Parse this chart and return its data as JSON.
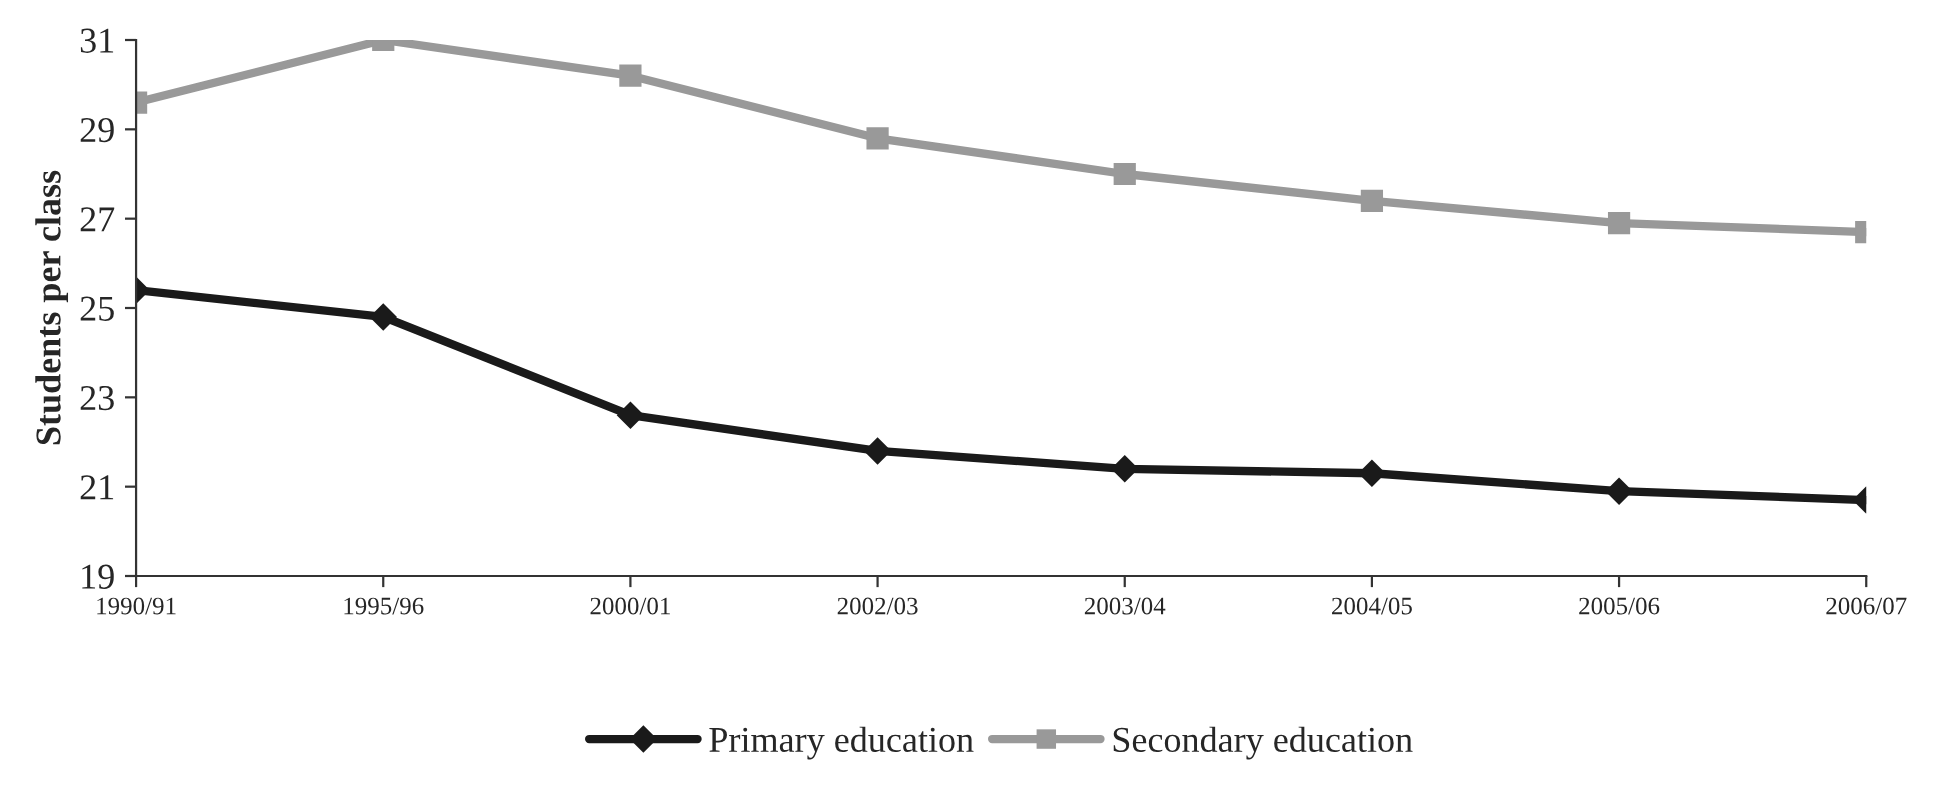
{
  "chart_data": {
    "type": "line",
    "ylabel": "Students per class",
    "categories": [
      "1990/91",
      "1995/96",
      "2000/01",
      "2002/03",
      "2003/04",
      "2004/05",
      "2005/06",
      "2006/07"
    ],
    "series": [
      {
        "name": "Primary education",
        "color": "#1a1a1a",
        "marker": "diamond",
        "values": [
          25.4,
          24.8,
          22.6,
          21.8,
          21.4,
          21.3,
          20.9,
          20.7
        ]
      },
      {
        "name": "Secondary education",
        "color": "#999999",
        "marker": "square",
        "values": [
          29.6,
          31.0,
          30.2,
          28.8,
          28.0,
          27.4,
          26.9,
          26.7
        ]
      }
    ],
    "ylim": [
      19,
      31
    ],
    "yticks": [
      19,
      21,
      23,
      25,
      27,
      29,
      31
    ],
    "grid": false,
    "legend": "bottom",
    "line_style": "solid"
  }
}
